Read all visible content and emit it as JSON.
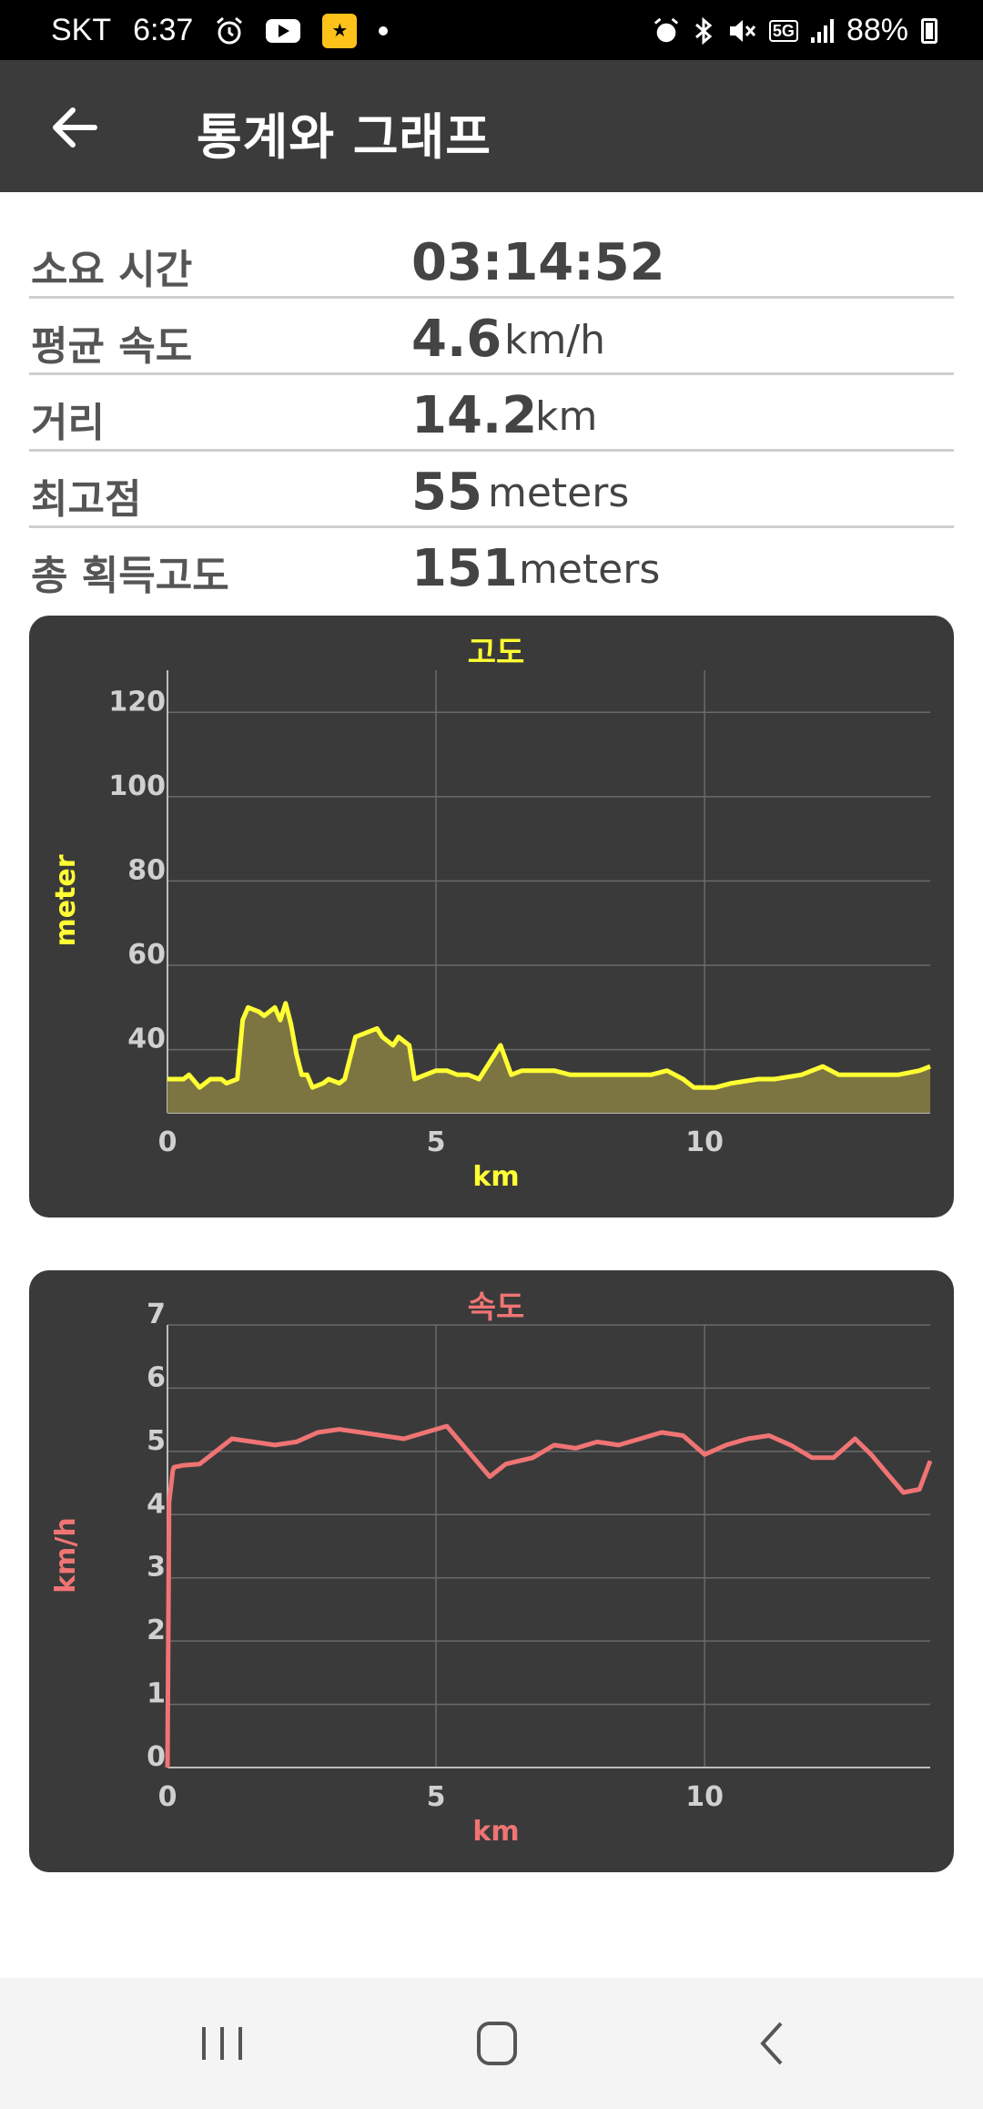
{
  "status_bar": {
    "carrier": "SKT",
    "time": "6:37",
    "battery": "88%",
    "network": "5G",
    "icons": [
      "alarm-icon",
      "youtube-icon",
      "kb-app-icon",
      "dot-icon",
      "alarm-icon",
      "bluetooth-icon",
      "mute-icon",
      "5g-icon",
      "signal-icon",
      "battery-icon"
    ]
  },
  "app_bar": {
    "title": "통계와 그래프",
    "back_icon": "arrow-left-icon"
  },
  "stats": [
    {
      "label": "소요 시간",
      "value": "03:14:52",
      "unit": ""
    },
    {
      "label": "평균 속도",
      "value": "4.6",
      "unit": "km/h"
    },
    {
      "label": "거리",
      "value": "14.2",
      "unit": "km"
    },
    {
      "label": "최고점",
      "value": "55",
      "unit": "meters"
    },
    {
      "label": "총 획득고도",
      "value": "151",
      "unit": "meters"
    }
  ],
  "chart_data": [
    {
      "type": "area",
      "title": "고도",
      "xlabel": "km",
      "ylabel": "meter",
      "xlim": [
        0,
        14.2
      ],
      "ylim": [
        25,
        130
      ],
      "xticks": [
        0,
        5,
        10
      ],
      "yticks": [
        40,
        60,
        80,
        100,
        120
      ],
      "grid": true,
      "color": "#ffff33",
      "fill_color": "#7c7542",
      "x": [
        0,
        0.3,
        0.4,
        0.6,
        0.8,
        1.0,
        1.1,
        1.3,
        1.4,
        1.5,
        1.7,
        1.8,
        2.0,
        2.1,
        2.2,
        2.3,
        2.4,
        2.5,
        2.6,
        2.7,
        2.9,
        3.0,
        3.2,
        3.3,
        3.5,
        3.7,
        3.9,
        4.0,
        4.1,
        4.2,
        4.3,
        4.5,
        4.6,
        4.8,
        5.0,
        5.2,
        5.4,
        5.6,
        5.8,
        6.2,
        6.4,
        6.6,
        6.8,
        7.0,
        7.2,
        7.5,
        7.7,
        8.0,
        8.5,
        9.0,
        9.3,
        9.6,
        9.8,
        10.2,
        10.5,
        11.0,
        11.3,
        11.8,
        12.2,
        12.5,
        12.7,
        13.0,
        13.3,
        13.6,
        14.0,
        14.2
      ],
      "y": [
        33,
        33,
        34,
        31,
        33,
        33,
        32,
        33,
        47,
        50,
        49,
        48,
        50,
        47,
        51,
        46,
        39,
        34,
        34,
        31,
        32,
        33,
        32,
        33,
        43,
        44,
        45,
        43,
        42,
        41,
        43,
        41,
        33,
        34,
        35,
        35,
        34,
        34,
        33,
        41,
        34,
        35,
        35,
        35,
        35,
        34,
        34,
        34,
        34,
        34,
        35,
        33,
        31,
        31,
        32,
        33,
        33,
        34,
        36,
        34,
        34,
        34,
        34,
        34,
        35,
        36
      ]
    },
    {
      "type": "line",
      "title": "속도",
      "xlabel": "km",
      "ylabel": "km/h",
      "xlim": [
        0,
        14.2
      ],
      "ylim": [
        0,
        7
      ],
      "xticks": [
        0,
        5,
        10
      ],
      "yticks": [
        0,
        1,
        2,
        3,
        4,
        5,
        6,
        7
      ],
      "grid": true,
      "color": "#f07474",
      "x": [
        0,
        0.03,
        0.1,
        0.12,
        0.3,
        0.6,
        0.9,
        1.2,
        1.6,
        2.0,
        2.4,
        2.8,
        3.2,
        3.6,
        4.0,
        4.4,
        4.8,
        5.2,
        5.6,
        6.0,
        6.3,
        6.8,
        7.2,
        7.6,
        8.0,
        8.4,
        8.8,
        9.2,
        9.6,
        10.0,
        10.4,
        10.8,
        11.2,
        11.6,
        12.0,
        12.4,
        12.8,
        13.1,
        13.4,
        13.7,
        14.0,
        14.2
      ],
      "y": [
        0,
        4.2,
        4.7,
        4.75,
        4.78,
        4.8,
        5.0,
        5.2,
        5.15,
        5.1,
        5.15,
        5.3,
        5.35,
        5.3,
        5.25,
        5.2,
        5.3,
        5.4,
        5.0,
        4.6,
        4.8,
        4.9,
        5.1,
        5.05,
        5.15,
        5.1,
        5.2,
        5.3,
        5.25,
        4.95,
        5.1,
        5.2,
        5.25,
        5.1,
        4.9,
        4.9,
        5.2,
        4.95,
        4.65,
        4.35,
        4.4,
        4.85
      ]
    }
  ],
  "nav_bar": {
    "icons": [
      "recent-apps-icon",
      "home-icon",
      "back-icon"
    ]
  }
}
